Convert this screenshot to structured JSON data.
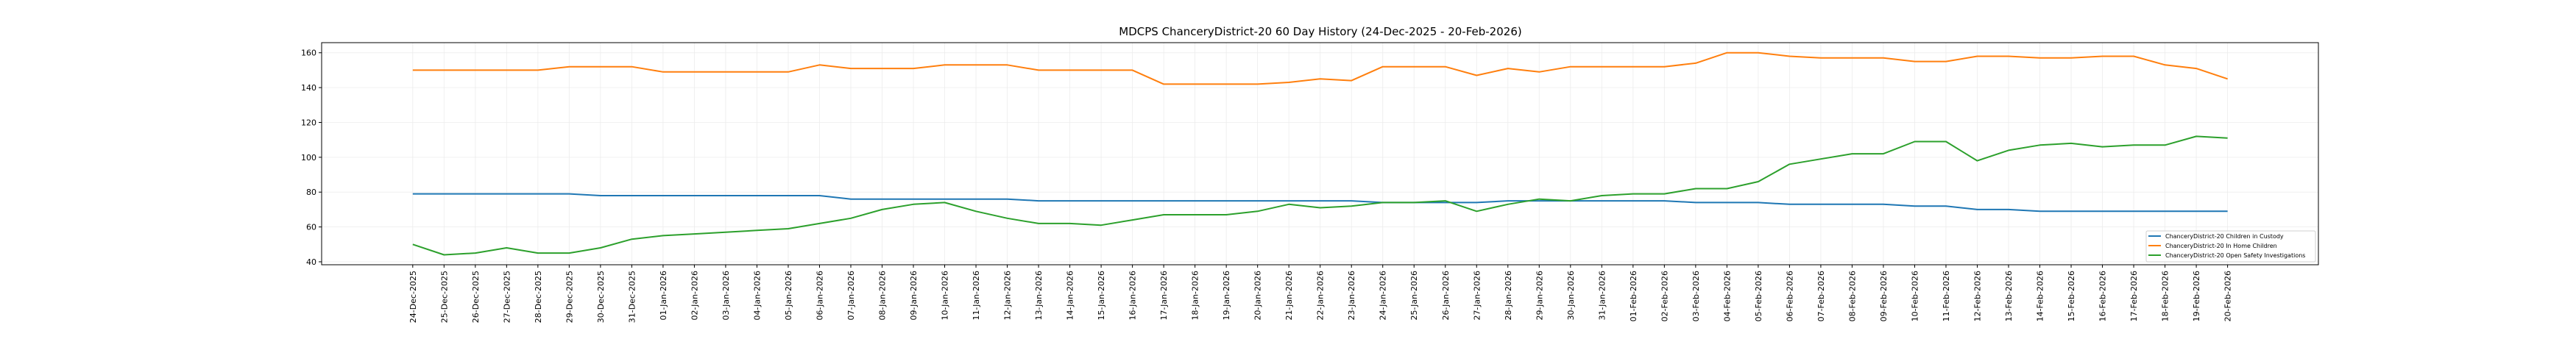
{
  "chart_data": {
    "type": "line",
    "title": "MDCPS ChanceryDistrict-20 60 Day History (24-Dec-2025 - 20-Feb-2026)",
    "xlabel": "",
    "ylabel": "",
    "ylim": [
      38.3,
      165.8
    ],
    "yticks": [
      40,
      60,
      80,
      100,
      120,
      140,
      160
    ],
    "grid": true,
    "legend_position": "lower-right",
    "x": [
      "24-Dec-2025",
      "25-Dec-2025",
      "26-Dec-2025",
      "27-Dec-2025",
      "28-Dec-2025",
      "29-Dec-2025",
      "30-Dec-2025",
      "31-Dec-2025",
      "01-Jan-2026",
      "02-Jan-2026",
      "03-Jan-2026",
      "04-Jan-2026",
      "05-Jan-2026",
      "06-Jan-2026",
      "07-Jan-2026",
      "08-Jan-2026",
      "09-Jan-2026",
      "10-Jan-2026",
      "11-Jan-2026",
      "12-Jan-2026",
      "13-Jan-2026",
      "14-Jan-2026",
      "15-Jan-2026",
      "16-Jan-2026",
      "17-Jan-2026",
      "18-Jan-2026",
      "19-Jan-2026",
      "20-Jan-2026",
      "21-Jan-2026",
      "22-Jan-2026",
      "23-Jan-2026",
      "24-Jan-2026",
      "25-Jan-2026",
      "26-Jan-2026",
      "27-Jan-2026",
      "28-Jan-2026",
      "29-Jan-2026",
      "30-Jan-2026",
      "31-Jan-2026",
      "01-Feb-2026",
      "02-Feb-2026",
      "03-Feb-2026",
      "04-Feb-2026",
      "05-Feb-2026",
      "06-Feb-2026",
      "07-Feb-2026",
      "08-Feb-2026",
      "09-Feb-2026",
      "10-Feb-2026",
      "11-Feb-2026",
      "12-Feb-2026",
      "13-Feb-2026",
      "14-Feb-2026",
      "15-Feb-2026",
      "16-Feb-2026",
      "17-Feb-2026",
      "18-Feb-2026",
      "19-Feb-2026",
      "20-Feb-2026"
    ],
    "series": [
      {
        "name": "ChanceryDistrict-20 Children in Custody",
        "color": "#1f77b4",
        "values": [
          79,
          79,
          79,
          79,
          79,
          79,
          78,
          78,
          78,
          78,
          78,
          78,
          78,
          78,
          76,
          76,
          76,
          76,
          76,
          76,
          75,
          75,
          75,
          75,
          75,
          75,
          75,
          75,
          75,
          75,
          75,
          74,
          74,
          74,
          74,
          75,
          75,
          75,
          75,
          75,
          75,
          74,
          74,
          74,
          73,
          73,
          73,
          73,
          72,
          72,
          70,
          70,
          69,
          69,
          69,
          69,
          69,
          69,
          69
        ]
      },
      {
        "name": "ChanceryDistrict-20 In Home Children",
        "color": "#ff7f0e",
        "values": [
          150,
          150,
          150,
          150,
          150,
          152,
          152,
          152,
          149,
          149,
          149,
          149,
          149,
          153,
          151,
          151,
          151,
          153,
          153,
          153,
          150,
          150,
          150,
          150,
          142,
          142,
          142,
          142,
          143,
          145,
          144,
          152,
          152,
          152,
          147,
          151,
          149,
          152,
          152,
          152,
          152,
          154,
          160,
          160,
          158,
          157,
          157,
          157,
          155,
          155,
          158,
          158,
          157,
          157,
          158,
          158,
          153,
          151,
          145
        ]
      },
      {
        "name": "ChanceryDistrict-20 Open Safety Investigations",
        "color": "#2ca02c",
        "values": [
          50,
          44,
          45,
          48,
          45,
          45,
          48,
          53,
          55,
          56,
          57,
          58,
          59,
          62,
          65,
          70,
          73,
          74,
          69,
          65,
          62,
          62,
          61,
          64,
          67,
          67,
          67,
          69,
          73,
          71,
          72,
          74,
          74,
          75,
          69,
          73,
          76,
          75,
          78,
          79,
          79,
          82,
          82,
          86,
          96,
          99,
          102,
          102,
          109,
          109,
          98,
          104,
          107,
          108,
          106,
          107,
          107,
          112,
          111
        ]
      }
    ]
  }
}
